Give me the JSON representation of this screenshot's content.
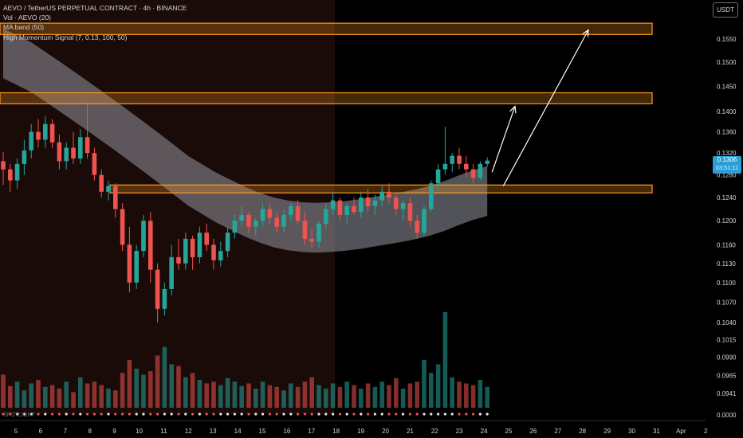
{
  "legend": {
    "symbol": "AEVO / TetherUS PERPETUAL CONTRACT · 4h · BINANCE",
    "vol": "Vol · AEVO (20)",
    "ma_band": "MA band (50)",
    "indicator": "High Momentum Signal (7, 0.13, 100, 50)",
    "bottom": "SPOTLIGHT"
  },
  "currency_button": "USDT",
  "last_price": {
    "value": "0.1306",
    "countdown": "03:51:11"
  },
  "colors": {
    "up": "#26a69a",
    "down": "#ef5350",
    "zone_fill": "#f7931a",
    "zone_stroke": "#ff9a1f",
    "band": "#9598a1",
    "background": "#000000",
    "shaded_region": "#1a0a08",
    "price_tag": "#2b9fd6"
  },
  "chart_data": {
    "type": "candlestick",
    "x_ticks": [
      "5",
      "6",
      "7",
      "8",
      "9",
      "10",
      "11",
      "12",
      "13",
      "14",
      "15",
      "16",
      "17",
      "18",
      "19",
      "20",
      "21",
      "22",
      "23",
      "24",
      "25",
      "26",
      "27",
      "28",
      "29",
      "30",
      "31",
      "Apr",
      "2"
    ],
    "y_ticks": [
      "0.1550",
      "0.1500",
      "0.1450",
      "0.1400",
      "0.1360",
      "0.1320",
      "0.1280",
      "0.1240",
      "0.1200",
      "0.1160",
      "0.1130",
      "0.1100",
      "0.1070",
      "0.1040",
      "0.1015",
      "0.0990",
      "0.0965",
      "0.0941",
      "0.0000"
    ],
    "y_scale": "log",
    "candles": [
      {
        "o": 0.1305,
        "h": 0.1322,
        "l": 0.1262,
        "c": 0.129
      },
      {
        "o": 0.129,
        "h": 0.13,
        "l": 0.125,
        "c": 0.127
      },
      {
        "o": 0.127,
        "h": 0.131,
        "l": 0.1255,
        "c": 0.13
      },
      {
        "o": 0.13,
        "h": 0.1345,
        "l": 0.128,
        "c": 0.1325
      },
      {
        "o": 0.1325,
        "h": 0.1375,
        "l": 0.131,
        "c": 0.136
      },
      {
        "o": 0.136,
        "h": 0.1385,
        "l": 0.133,
        "c": 0.1345
      },
      {
        "o": 0.1345,
        "h": 0.139,
        "l": 0.133,
        "c": 0.1375
      },
      {
        "o": 0.1375,
        "h": 0.1385,
        "l": 0.133,
        "c": 0.134
      },
      {
        "o": 0.134,
        "h": 0.1355,
        "l": 0.129,
        "c": 0.1305
      },
      {
        "o": 0.1305,
        "h": 0.134,
        "l": 0.129,
        "c": 0.133
      },
      {
        "o": 0.133,
        "h": 0.136,
        "l": 0.13,
        "c": 0.131
      },
      {
        "o": 0.131,
        "h": 0.1365,
        "l": 0.13,
        "c": 0.135
      },
      {
        "o": 0.135,
        "h": 0.142,
        "l": 0.131,
        "c": 0.132
      },
      {
        "o": 0.132,
        "h": 0.133,
        "l": 0.127,
        "c": 0.128
      },
      {
        "o": 0.128,
        "h": 0.129,
        "l": 0.124,
        "c": 0.125
      },
      {
        "o": 0.125,
        "h": 0.127,
        "l": 0.1235,
        "c": 0.126
      },
      {
        "o": 0.126,
        "h": 0.1265,
        "l": 0.1205,
        "c": 0.122
      },
      {
        "o": 0.122,
        "h": 0.123,
        "l": 0.115,
        "c": 0.116
      },
      {
        "o": 0.116,
        "h": 0.119,
        "l": 0.1085,
        "c": 0.11
      },
      {
        "o": 0.11,
        "h": 0.116,
        "l": 0.109,
        "c": 0.115
      },
      {
        "o": 0.115,
        "h": 0.121,
        "l": 0.114,
        "c": 0.12
      },
      {
        "o": 0.12,
        "h": 0.1215,
        "l": 0.11,
        "c": 0.112
      },
      {
        "o": 0.112,
        "h": 0.113,
        "l": 0.104,
        "c": 0.106
      },
      {
        "o": 0.106,
        "h": 0.11,
        "l": 0.105,
        "c": 0.109
      },
      {
        "o": 0.109,
        "h": 0.116,
        "l": 0.108,
        "c": 0.114
      },
      {
        "o": 0.114,
        "h": 0.117,
        "l": 0.112,
        "c": 0.113
      },
      {
        "o": 0.113,
        "h": 0.118,
        "l": 0.112,
        "c": 0.117
      },
      {
        "o": 0.117,
        "h": 0.1175,
        "l": 0.112,
        "c": 0.114
      },
      {
        "o": 0.114,
        "h": 0.119,
        "l": 0.113,
        "c": 0.118
      },
      {
        "o": 0.118,
        "h": 0.1195,
        "l": 0.115,
        "c": 0.116
      },
      {
        "o": 0.116,
        "h": 0.117,
        "l": 0.112,
        "c": 0.1135
      },
      {
        "o": 0.1135,
        "h": 0.1165,
        "l": 0.1125,
        "c": 0.115
      },
      {
        "o": 0.115,
        "h": 0.119,
        "l": 0.114,
        "c": 0.118
      },
      {
        "o": 0.118,
        "h": 0.121,
        "l": 0.117,
        "c": 0.12
      },
      {
        "o": 0.12,
        "h": 0.1225,
        "l": 0.119,
        "c": 0.121
      },
      {
        "o": 0.121,
        "h": 0.1215,
        "l": 0.118,
        "c": 0.119
      },
      {
        "o": 0.119,
        "h": 0.1205,
        "l": 0.1175,
        "c": 0.12
      },
      {
        "o": 0.12,
        "h": 0.123,
        "l": 0.119,
        "c": 0.122
      },
      {
        "o": 0.122,
        "h": 0.123,
        "l": 0.1195,
        "c": 0.1205
      },
      {
        "o": 0.1205,
        "h": 0.1215,
        "l": 0.118,
        "c": 0.119
      },
      {
        "o": 0.119,
        "h": 0.122,
        "l": 0.118,
        "c": 0.121
      },
      {
        "o": 0.121,
        "h": 0.123,
        "l": 0.12,
        "c": 0.1225
      },
      {
        "o": 0.1225,
        "h": 0.1235,
        "l": 0.1195,
        "c": 0.12
      },
      {
        "o": 0.12,
        "h": 0.1215,
        "l": 0.116,
        "c": 0.117
      },
      {
        "o": 0.117,
        "h": 0.1185,
        "l": 0.1155,
        "c": 0.1165
      },
      {
        "o": 0.1165,
        "h": 0.12,
        "l": 0.1155,
        "c": 0.1195
      },
      {
        "o": 0.1195,
        "h": 0.123,
        "l": 0.1185,
        "c": 0.122
      },
      {
        "o": 0.122,
        "h": 0.125,
        "l": 0.121,
        "c": 0.1235
      },
      {
        "o": 0.1235,
        "h": 0.124,
        "l": 0.12,
        "c": 0.121
      },
      {
        "o": 0.121,
        "h": 0.123,
        "l": 0.1195,
        "c": 0.1225
      },
      {
        "o": 0.1225,
        "h": 0.124,
        "l": 0.121,
        "c": 0.1215
      },
      {
        "o": 0.1215,
        "h": 0.125,
        "l": 0.1205,
        "c": 0.124
      },
      {
        "o": 0.124,
        "h": 0.1255,
        "l": 0.1215,
        "c": 0.1225
      },
      {
        "o": 0.1225,
        "h": 0.1245,
        "l": 0.121,
        "c": 0.1235
      },
      {
        "o": 0.1235,
        "h": 0.126,
        "l": 0.1225,
        "c": 0.125
      },
      {
        "o": 0.125,
        "h": 0.1265,
        "l": 0.123,
        "c": 0.124
      },
      {
        "o": 0.124,
        "h": 0.1245,
        "l": 0.121,
        "c": 0.122
      },
      {
        "o": 0.122,
        "h": 0.1235,
        "l": 0.12,
        "c": 0.123
      },
      {
        "o": 0.123,
        "h": 0.124,
        "l": 0.119,
        "c": 0.12
      },
      {
        "o": 0.12,
        "h": 0.121,
        "l": 0.117,
        "c": 0.118
      },
      {
        "o": 0.118,
        "h": 0.1225,
        "l": 0.1175,
        "c": 0.122
      },
      {
        "o": 0.122,
        "h": 0.127,
        "l": 0.1215,
        "c": 0.1265
      },
      {
        "o": 0.1265,
        "h": 0.13,
        "l": 0.1255,
        "c": 0.129
      },
      {
        "o": 0.129,
        "h": 0.137,
        "l": 0.128,
        "c": 0.13
      },
      {
        "o": 0.13,
        "h": 0.132,
        "l": 0.1285,
        "c": 0.1315
      },
      {
        "o": 0.1315,
        "h": 0.133,
        "l": 0.129,
        "c": 0.13
      },
      {
        "o": 0.13,
        "h": 0.1315,
        "l": 0.1275,
        "c": 0.129
      },
      {
        "o": 0.129,
        "h": 0.13,
        "l": 0.1265,
        "c": 0.1275
      },
      {
        "o": 0.1275,
        "h": 0.1305,
        "l": 0.127,
        "c": 0.13
      },
      {
        "o": 0.13,
        "h": 0.1312,
        "l": 0.1295,
        "c": 0.1306
      }
    ],
    "volume": [
      38,
      25,
      30,
      20,
      28,
      32,
      24,
      26,
      22,
      30,
      18,
      35,
      28,
      30,
      26,
      22,
      20,
      40,
      55,
      45,
      38,
      42,
      60,
      70,
      50,
      48,
      35,
      40,
      32,
      28,
      30,
      26,
      34,
      30,
      25,
      28,
      22,
      30,
      26,
      24,
      20,
      28,
      24,
      30,
      35,
      26,
      22,
      28,
      24,
      30,
      26,
      22,
      28,
      24,
      30,
      26,
      34,
      22,
      28,
      30,
      55,
      40,
      50,
      110,
      35,
      30,
      28,
      26,
      32,
      24
    ],
    "zones": [
      {
        "top": 0.1585,
        "bottom": 0.156
      },
      {
        "top": 0.1437,
        "bottom": 0.1415
      },
      {
        "top": 0.1262,
        "bottom": 0.1248
      }
    ],
    "ma_band": [
      0.152,
      0.1505,
      0.149,
      0.147,
      0.145,
      0.143,
      0.141,
      0.139,
      0.137,
      0.135,
      0.133,
      0.131,
      0.129,
      0.127,
      0.1255,
      0.124,
      0.1228,
      0.1216,
      0.1206,
      0.1198,
      0.1193,
      0.119,
      0.1189,
      0.119,
      0.1192,
      0.1195,
      0.1199,
      0.1203,
      0.1207,
      0.1212,
      0.1218,
      0.1226,
      0.1236,
      0.1245,
      0.1252
    ],
    "projection_arrows": [
      {
        "from": 0.1285,
        "to": 0.141
      },
      {
        "from": 0.126,
        "to": 0.157
      }
    ]
  }
}
